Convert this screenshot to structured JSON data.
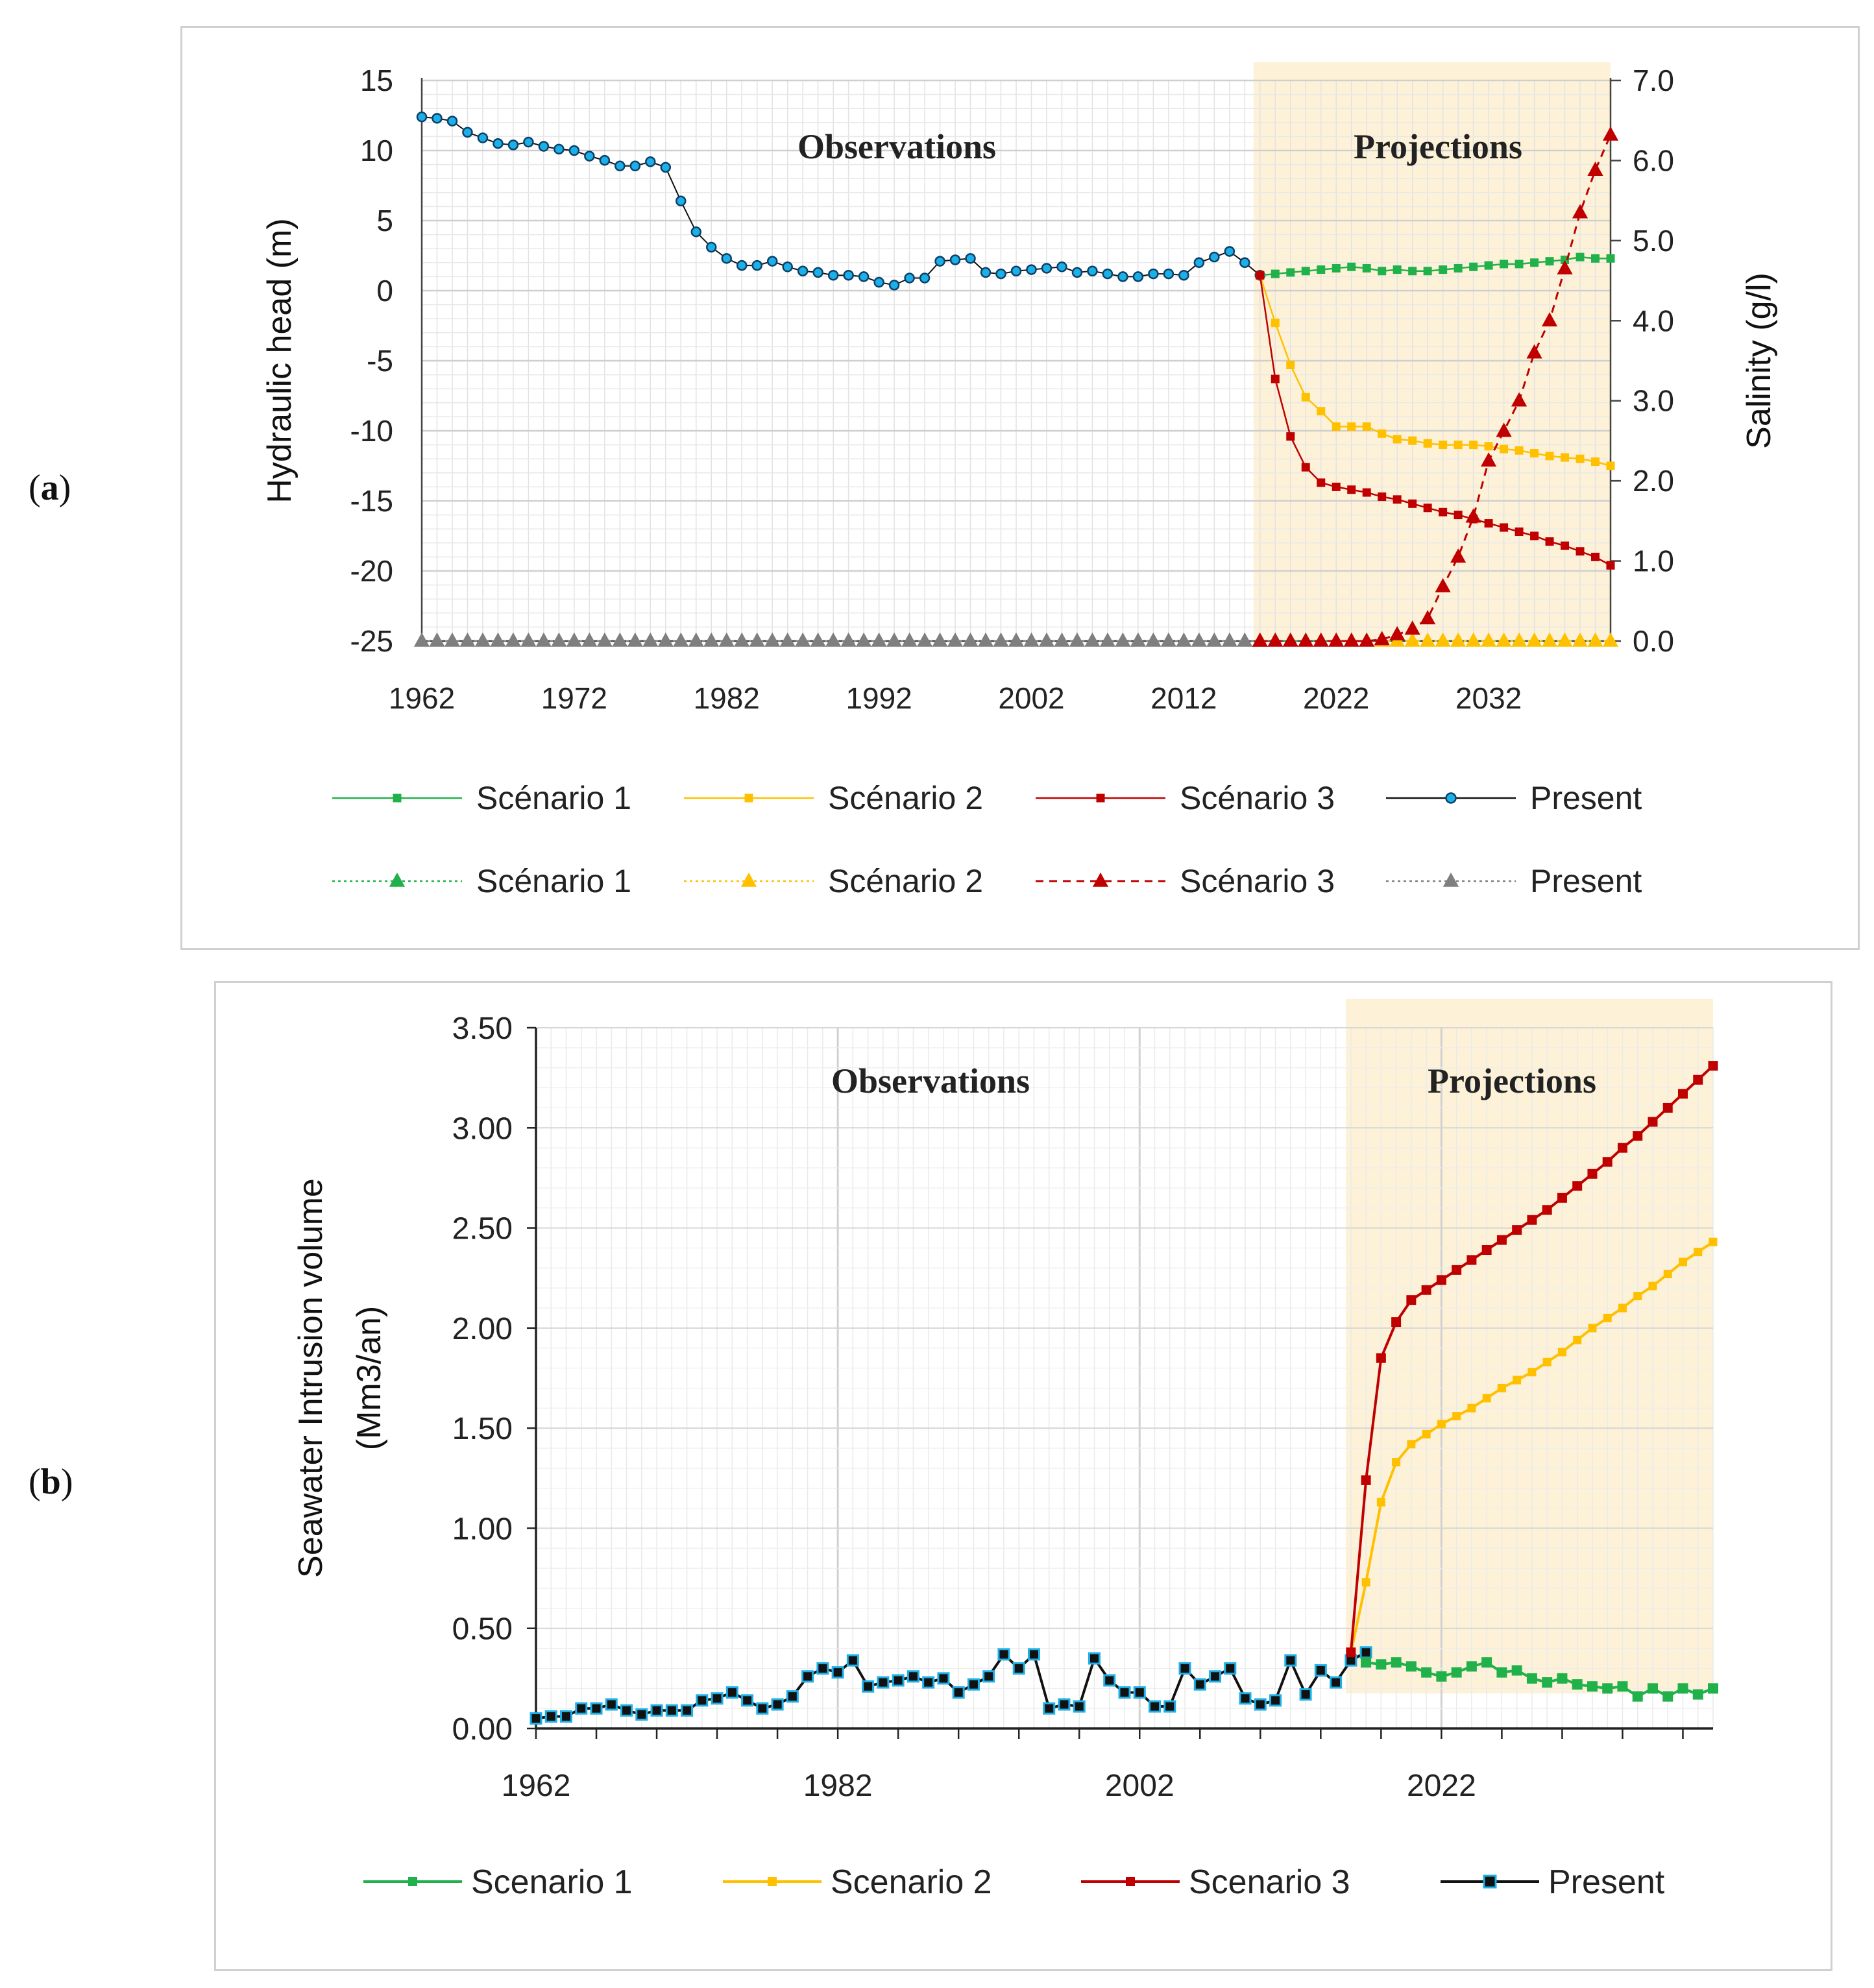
{
  "panel_labels": {
    "a": "a",
    "b": "b"
  },
  "chart_data": [
    {
      "id": "a",
      "type": "line",
      "title": "",
      "xlabel": "",
      "ylabel": "Hydraulic head (m)",
      "y2label": "Salinity (g/l)",
      "xlim": [
        1962,
        2040
      ],
      "ylim": [
        -25,
        15
      ],
      "y2lim": [
        0,
        7
      ],
      "x_ticks": [
        "1962",
        "1972",
        "1982",
        "1992",
        "2002",
        "2012",
        "2022",
        "2032"
      ],
      "y_ticks": [
        "15",
        "10",
        "5",
        "0",
        "-5",
        "-10",
        "-15",
        "-20",
        "-25"
      ],
      "y2_ticks": [
        "7.0",
        "6.0",
        "5.0",
        "4.0",
        "3.0",
        "2.0",
        "1.0",
        "0.0"
      ],
      "annotations": {
        "observations": "Observations",
        "projections": "Projections"
      },
      "projection_start": 2017,
      "legend_head": [
        "Scénario 1",
        "Scénario 2",
        "Scénario 3",
        "Present"
      ],
      "legend_salinity": [
        "Scénario 1",
        "Scénario 2",
        "Scénario 3",
        "Present"
      ],
      "colors": {
        "s1": "#21b14b",
        "s2": "#ffc000",
        "s3": "#c00000",
        "present_head": "#1cb0e8",
        "present_salinity": "#7f7f7f"
      },
      "series": [
        {
          "name": "Present (head)",
          "axis": "y1",
          "x": [
            1962,
            1963,
            1964,
            1965,
            1966,
            1967,
            1968,
            1969,
            1970,
            1971,
            1972,
            1973,
            1974,
            1975,
            1976,
            1977,
            1978,
            1979,
            1980,
            1981,
            1982,
            1983,
            1984,
            1985,
            1986,
            1987,
            1988,
            1989,
            1990,
            1991,
            1992,
            1993,
            1994,
            1995,
            1996,
            1997,
            1998,
            1999,
            2000,
            2001,
            2002,
            2003,
            2004,
            2005,
            2006,
            2007,
            2008,
            2009,
            2010,
            2011,
            2012,
            2013,
            2014,
            2015,
            2016,
            2017
          ],
          "values": [
            12.4,
            12.3,
            12.1,
            11.3,
            10.9,
            10.5,
            10.4,
            10.6,
            10.3,
            10.1,
            10.0,
            9.6,
            9.3,
            8.9,
            8.9,
            9.2,
            8.8,
            6.4,
            4.2,
            3.1,
            2.3,
            1.8,
            1.8,
            2.1,
            1.7,
            1.4,
            1.3,
            1.1,
            1.1,
            1.0,
            0.6,
            0.4,
            0.9,
            0.9,
            2.1,
            2.2,
            2.3,
            1.3,
            1.2,
            1.4,
            1.5,
            1.6,
            1.7,
            1.3,
            1.4,
            1.2,
            1.0,
            1.0,
            1.2,
            1.2,
            1.1,
            2.0,
            2.4,
            2.8,
            2.0,
            1.1
          ]
        },
        {
          "name": "Scénario 1 (head)",
          "axis": "y1",
          "x": [
            2017,
            2018,
            2019,
            2020,
            2021,
            2022,
            2023,
            2024,
            2025,
            2026,
            2027,
            2028,
            2029,
            2030,
            2031,
            2032,
            2033,
            2034,
            2035,
            2036,
            2037,
            2038,
            2039,
            2040
          ],
          "values": [
            1.1,
            1.2,
            1.3,
            1.4,
            1.5,
            1.6,
            1.7,
            1.6,
            1.4,
            1.5,
            1.4,
            1.4,
            1.5,
            1.6,
            1.7,
            1.8,
            1.9,
            1.9,
            2.0,
            2.1,
            2.2,
            2.4,
            2.3,
            2.3
          ]
        },
        {
          "name": "Scénario 2 (head)",
          "axis": "y1",
          "x": [
            2017,
            2018,
            2019,
            2020,
            2021,
            2022,
            2023,
            2024,
            2025,
            2026,
            2027,
            2028,
            2029,
            2030,
            2031,
            2032,
            2033,
            2034,
            2035,
            2036,
            2037,
            2038,
            2039,
            2040
          ],
          "values": [
            1.1,
            -2.3,
            -5.3,
            -7.6,
            -8.6,
            -9.7,
            -9.7,
            -9.7,
            -10.2,
            -10.6,
            -10.7,
            -10.9,
            -11.0,
            -11.0,
            -11.0,
            -11.1,
            -11.3,
            -11.4,
            -11.6,
            -11.8,
            -11.9,
            -12.0,
            -12.2,
            -12.5
          ]
        },
        {
          "name": "Scénario 3 (head)",
          "axis": "y1",
          "x": [
            2017,
            2018,
            2019,
            2020,
            2021,
            2022,
            2023,
            2024,
            2025,
            2026,
            2027,
            2028,
            2029,
            2030,
            2031,
            2032,
            2033,
            2034,
            2035,
            2036,
            2037,
            2038,
            2039,
            2040
          ],
          "values": [
            1.1,
            -6.3,
            -10.4,
            -12.6,
            -13.7,
            -14.0,
            -14.2,
            -14.4,
            -14.7,
            -14.9,
            -15.2,
            -15.5,
            -15.8,
            -16.0,
            -16.3,
            -16.6,
            -16.9,
            -17.2,
            -17.5,
            -17.9,
            -18.2,
            -18.6,
            -19.0,
            -19.6
          ]
        },
        {
          "name": "Present (salinity)",
          "axis": "y2",
          "dashed": true,
          "x": [
            1962,
            1963,
            1964,
            1965,
            1966,
            1967,
            1968,
            1969,
            1970,
            1971,
            1972,
            1973,
            1974,
            1975,
            1976,
            1977,
            1978,
            1979,
            1980,
            1981,
            1982,
            1983,
            1984,
            1985,
            1986,
            1987,
            1988,
            1989,
            1990,
            1991,
            1992,
            1993,
            1994,
            1995,
            1996,
            1997,
            1998,
            1999,
            2000,
            2001,
            2002,
            2003,
            2004,
            2005,
            2006,
            2007,
            2008,
            2009,
            2010,
            2011,
            2012,
            2013,
            2014,
            2015,
            2016,
            2017
          ],
          "values": [
            0,
            0,
            0,
            0,
            0,
            0,
            0,
            0,
            0,
            0,
            0,
            0,
            0,
            0,
            0,
            0,
            0,
            0,
            0,
            0,
            0,
            0,
            0,
            0,
            0,
            0,
            0,
            0,
            0,
            0,
            0,
            0,
            0,
            0,
            0,
            0,
            0,
            0,
            0,
            0,
            0,
            0,
            0,
            0,
            0,
            0,
            0,
            0,
            0,
            0,
            0,
            0,
            0,
            0,
            0,
            0
          ]
        },
        {
          "name": "Scénario 1 (salinity)",
          "axis": "y2",
          "dashed": true,
          "x": [
            2017,
            2040
          ],
          "values": [
            0,
            0
          ],
          "markers": false
        },
        {
          "name": "Scénario 2 (salinity)",
          "axis": "y2",
          "dashed": true,
          "x": [
            2025,
            2026,
            2027,
            2028,
            2029,
            2030,
            2031,
            2032,
            2033,
            2034,
            2035,
            2036,
            2037,
            2038,
            2039,
            2040
          ],
          "values": [
            0,
            0,
            0,
            0,
            0,
            0,
            0,
            0,
            0,
            0,
            0,
            0,
            0,
            0,
            0,
            0
          ]
        },
        {
          "name": "Scénario 3 (salinity)",
          "axis": "y2",
          "dashed": true,
          "x": [
            2017,
            2018,
            2019,
            2020,
            2021,
            2022,
            2023,
            2024,
            2025,
            2026,
            2027,
            2028,
            2029,
            2030,
            2031,
            2032,
            2033,
            2034,
            2035,
            2036,
            2037,
            2038,
            2039,
            2040
          ],
          "values": [
            0,
            0,
            0,
            0,
            0,
            0,
            0,
            0,
            0.02,
            0.08,
            0.15,
            0.28,
            0.68,
            1.05,
            1.55,
            2.25,
            2.62,
            3.0,
            3.6,
            4.0,
            4.65,
            5.35,
            5.88,
            6.32
          ]
        }
      ]
    },
    {
      "id": "b",
      "type": "line",
      "title": "",
      "xlabel": "",
      "ylabel": "Seawater Intrusion volume",
      "ylabel2": "(Mm3/an)",
      "xlim": [
        1962,
        2040
      ],
      "ylim": [
        0,
        3.5
      ],
      "x_ticks": [
        "1962",
        "1982",
        "2002",
        "2022"
      ],
      "y_ticks": [
        "3.50",
        "3.00",
        "2.50",
        "2.00",
        "1.50",
        "1.00",
        "0.50",
        "0.00"
      ],
      "annotations": {
        "observations": "Observations",
        "projections": "Projections"
      },
      "projection_start": 2016,
      "legend": [
        "Scenario 1",
        "Scenario 2",
        "Scenario 3",
        "Present"
      ],
      "colors": {
        "s1": "#21b14b",
        "s2": "#ffc000",
        "s3": "#c00000",
        "present": "#1cb0e8"
      },
      "series": [
        {
          "name": "Present",
          "x": [
            1962,
            1963,
            1964,
            1965,
            1966,
            1967,
            1968,
            1969,
            1970,
            1971,
            1972,
            1973,
            1974,
            1975,
            1976,
            1977,
            1978,
            1979,
            1980,
            1981,
            1982,
            1983,
            1984,
            1985,
            1986,
            1987,
            1988,
            1989,
            1990,
            1991,
            1992,
            1993,
            1994,
            1995,
            1996,
            1997,
            1998,
            1999,
            2000,
            2001,
            2002,
            2003,
            2004,
            2005,
            2006,
            2007,
            2008,
            2009,
            2010,
            2011,
            2012,
            2013,
            2014,
            2015,
            2016,
            2017
          ],
          "values": [
            0.05,
            0.06,
            0.06,
            0.1,
            0.1,
            0.12,
            0.09,
            0.07,
            0.09,
            0.09,
            0.09,
            0.14,
            0.15,
            0.18,
            0.14,
            0.1,
            0.12,
            0.16,
            0.26,
            0.3,
            0.28,
            0.34,
            0.21,
            0.23,
            0.24,
            0.26,
            0.23,
            0.25,
            0.18,
            0.22,
            0.26,
            0.37,
            0.3,
            0.37,
            0.1,
            0.12,
            0.11,
            0.35,
            0.24,
            0.18,
            0.18,
            0.11,
            0.11,
            0.3,
            0.22,
            0.26,
            0.3,
            0.15,
            0.12,
            0.14,
            0.34,
            0.17,
            0.29,
            0.23,
            0.34,
            0.38
          ]
        },
        {
          "name": "Scenario 1",
          "x": [
            2017,
            2018,
            2019,
            2020,
            2021,
            2022,
            2023,
            2024,
            2025,
            2026,
            2027,
            2028,
            2029,
            2030,
            2031,
            2032,
            2033,
            2034,
            2035,
            2036,
            2037,
            2038,
            2039,
            2040
          ],
          "values": [
            0.33,
            0.32,
            0.33,
            0.31,
            0.28,
            0.26,
            0.28,
            0.31,
            0.33,
            0.28,
            0.29,
            0.25,
            0.23,
            0.25,
            0.22,
            0.21,
            0.2,
            0.21,
            0.16,
            0.2,
            0.16,
            0.2,
            0.17,
            0.2
          ]
        },
        {
          "name": "Scenario 2",
          "x": [
            2016,
            2017,
            2018,
            2019,
            2020,
            2021,
            2022,
            2023,
            2024,
            2025,
            2026,
            2027,
            2028,
            2029,
            2030,
            2031,
            2032,
            2033,
            2034,
            2035,
            2036,
            2037,
            2038,
            2039,
            2040
          ],
          "values": [
            0.38,
            0.73,
            1.13,
            1.33,
            1.42,
            1.47,
            1.52,
            1.56,
            1.6,
            1.65,
            1.7,
            1.74,
            1.78,
            1.83,
            1.88,
            1.94,
            2.0,
            2.05,
            2.1,
            2.16,
            2.21,
            2.27,
            2.33,
            2.38,
            2.43
          ]
        },
        {
          "name": "Scenario 3",
          "x": [
            2016,
            2017,
            2018,
            2019,
            2020,
            2021,
            2022,
            2023,
            2024,
            2025,
            2026,
            2027,
            2028,
            2029,
            2030,
            2031,
            2032,
            2033,
            2034,
            2035,
            2036,
            2037,
            2038,
            2039,
            2040
          ],
          "values": [
            0.38,
            1.24,
            1.85,
            2.03,
            2.14,
            2.19,
            2.24,
            2.29,
            2.34,
            2.39,
            2.44,
            2.49,
            2.54,
            2.59,
            2.65,
            2.71,
            2.77,
            2.83,
            2.9,
            2.96,
            3.03,
            3.1,
            3.17,
            3.24,
            3.31
          ]
        }
      ]
    }
  ]
}
